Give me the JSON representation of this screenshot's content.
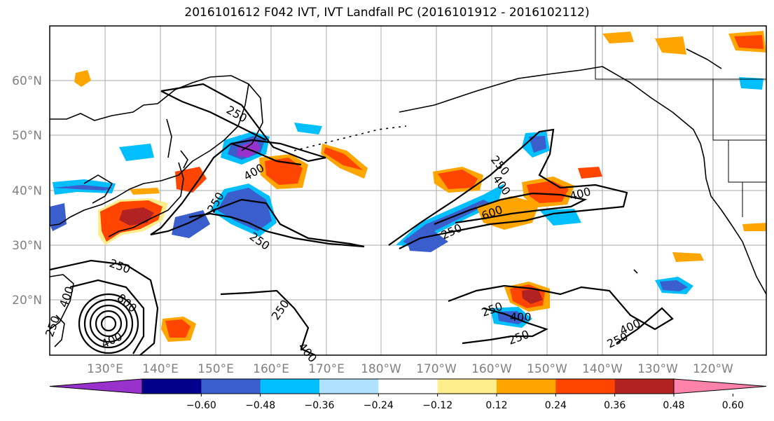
{
  "title": "2016101612 F042 IVT, IVT Landfall PC (2016101912 - 2016102112)",
  "lat_labels": [
    "60°N",
    "50°N",
    "40°N",
    "30°N",
    "20°N"
  ],
  "lon_labels": [
    "130°E",
    "140°E",
    "150°E",
    "160°E",
    "170°E",
    "180°W",
    "170°W",
    "160°W",
    "150°W",
    "140°W",
    "130°W",
    "120°W"
  ],
  "colorbar": {
    "colors": [
      "#9932cc",
      "#00008b",
      "#3a5fcd",
      "#00bfff",
      "#b0e2ff",
      "#ffffff",
      "#ffec8b",
      "#ffa500",
      "#ff4500",
      "#b22222",
      "#ff82ab"
    ],
    "tick_labels": [
      "−0.60",
      "−0.48",
      "−0.36",
      "−0.24",
      "−0.12",
      "0.12",
      "0.24",
      "0.36",
      "0.48",
      "0.60"
    ]
  },
  "contour_labels": [
    "250",
    "400",
    "250",
    "250",
    "250",
    "400",
    "600",
    "250",
    "400",
    "250",
    "400",
    "250",
    "800",
    "400",
    "400",
    "250",
    "400",
    "250",
    "250",
    "400",
    "250"
  ]
}
